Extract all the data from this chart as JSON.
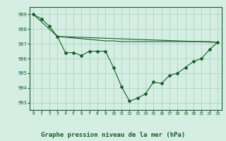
{
  "background_color": "#d4eee4",
  "plot_bg_color": "#d4eee4",
  "grid_color": "#aaccbb",
  "line_color": "#1a5c2a",
  "title": "Graphe pression niveau de la mer (hPa)",
  "xlim": [
    -0.5,
    23.5
  ],
  "ylim": [
    992.5,
    999.5
  ],
  "yticks": [
    993,
    994,
    995,
    996,
    997,
    998,
    999
  ],
  "xticks": [
    0,
    1,
    2,
    3,
    4,
    5,
    6,
    7,
    8,
    9,
    10,
    11,
    12,
    13,
    14,
    15,
    16,
    17,
    18,
    19,
    20,
    21,
    22,
    23
  ],
  "line1_x": [
    0,
    1,
    2,
    3,
    4,
    5,
    6,
    7,
    8,
    9,
    10,
    11,
    12,
    13,
    14,
    15,
    16,
    17,
    18,
    19,
    20,
    21,
    22,
    23
  ],
  "line1_y": [
    999.0,
    998.7,
    998.2,
    997.5,
    996.4,
    996.4,
    996.2,
    996.5,
    996.5,
    996.5,
    995.4,
    994.1,
    993.1,
    993.3,
    993.6,
    994.4,
    994.3,
    994.85,
    995.0,
    995.4,
    995.8,
    996.0,
    996.6,
    997.1
  ],
  "line2_x": [
    0,
    3,
    23
  ],
  "line2_y": [
    999.0,
    997.5,
    997.1
  ],
  "line3_x": [
    3,
    9,
    10,
    11,
    12,
    13,
    14,
    15,
    16,
    17,
    18,
    19,
    20,
    21,
    22,
    23
  ],
  "line3_y": [
    997.5,
    997.2,
    997.2,
    997.15,
    997.15,
    997.15,
    997.15,
    997.15,
    997.15,
    997.15,
    997.15,
    997.15,
    997.15,
    997.15,
    997.15,
    997.1
  ]
}
